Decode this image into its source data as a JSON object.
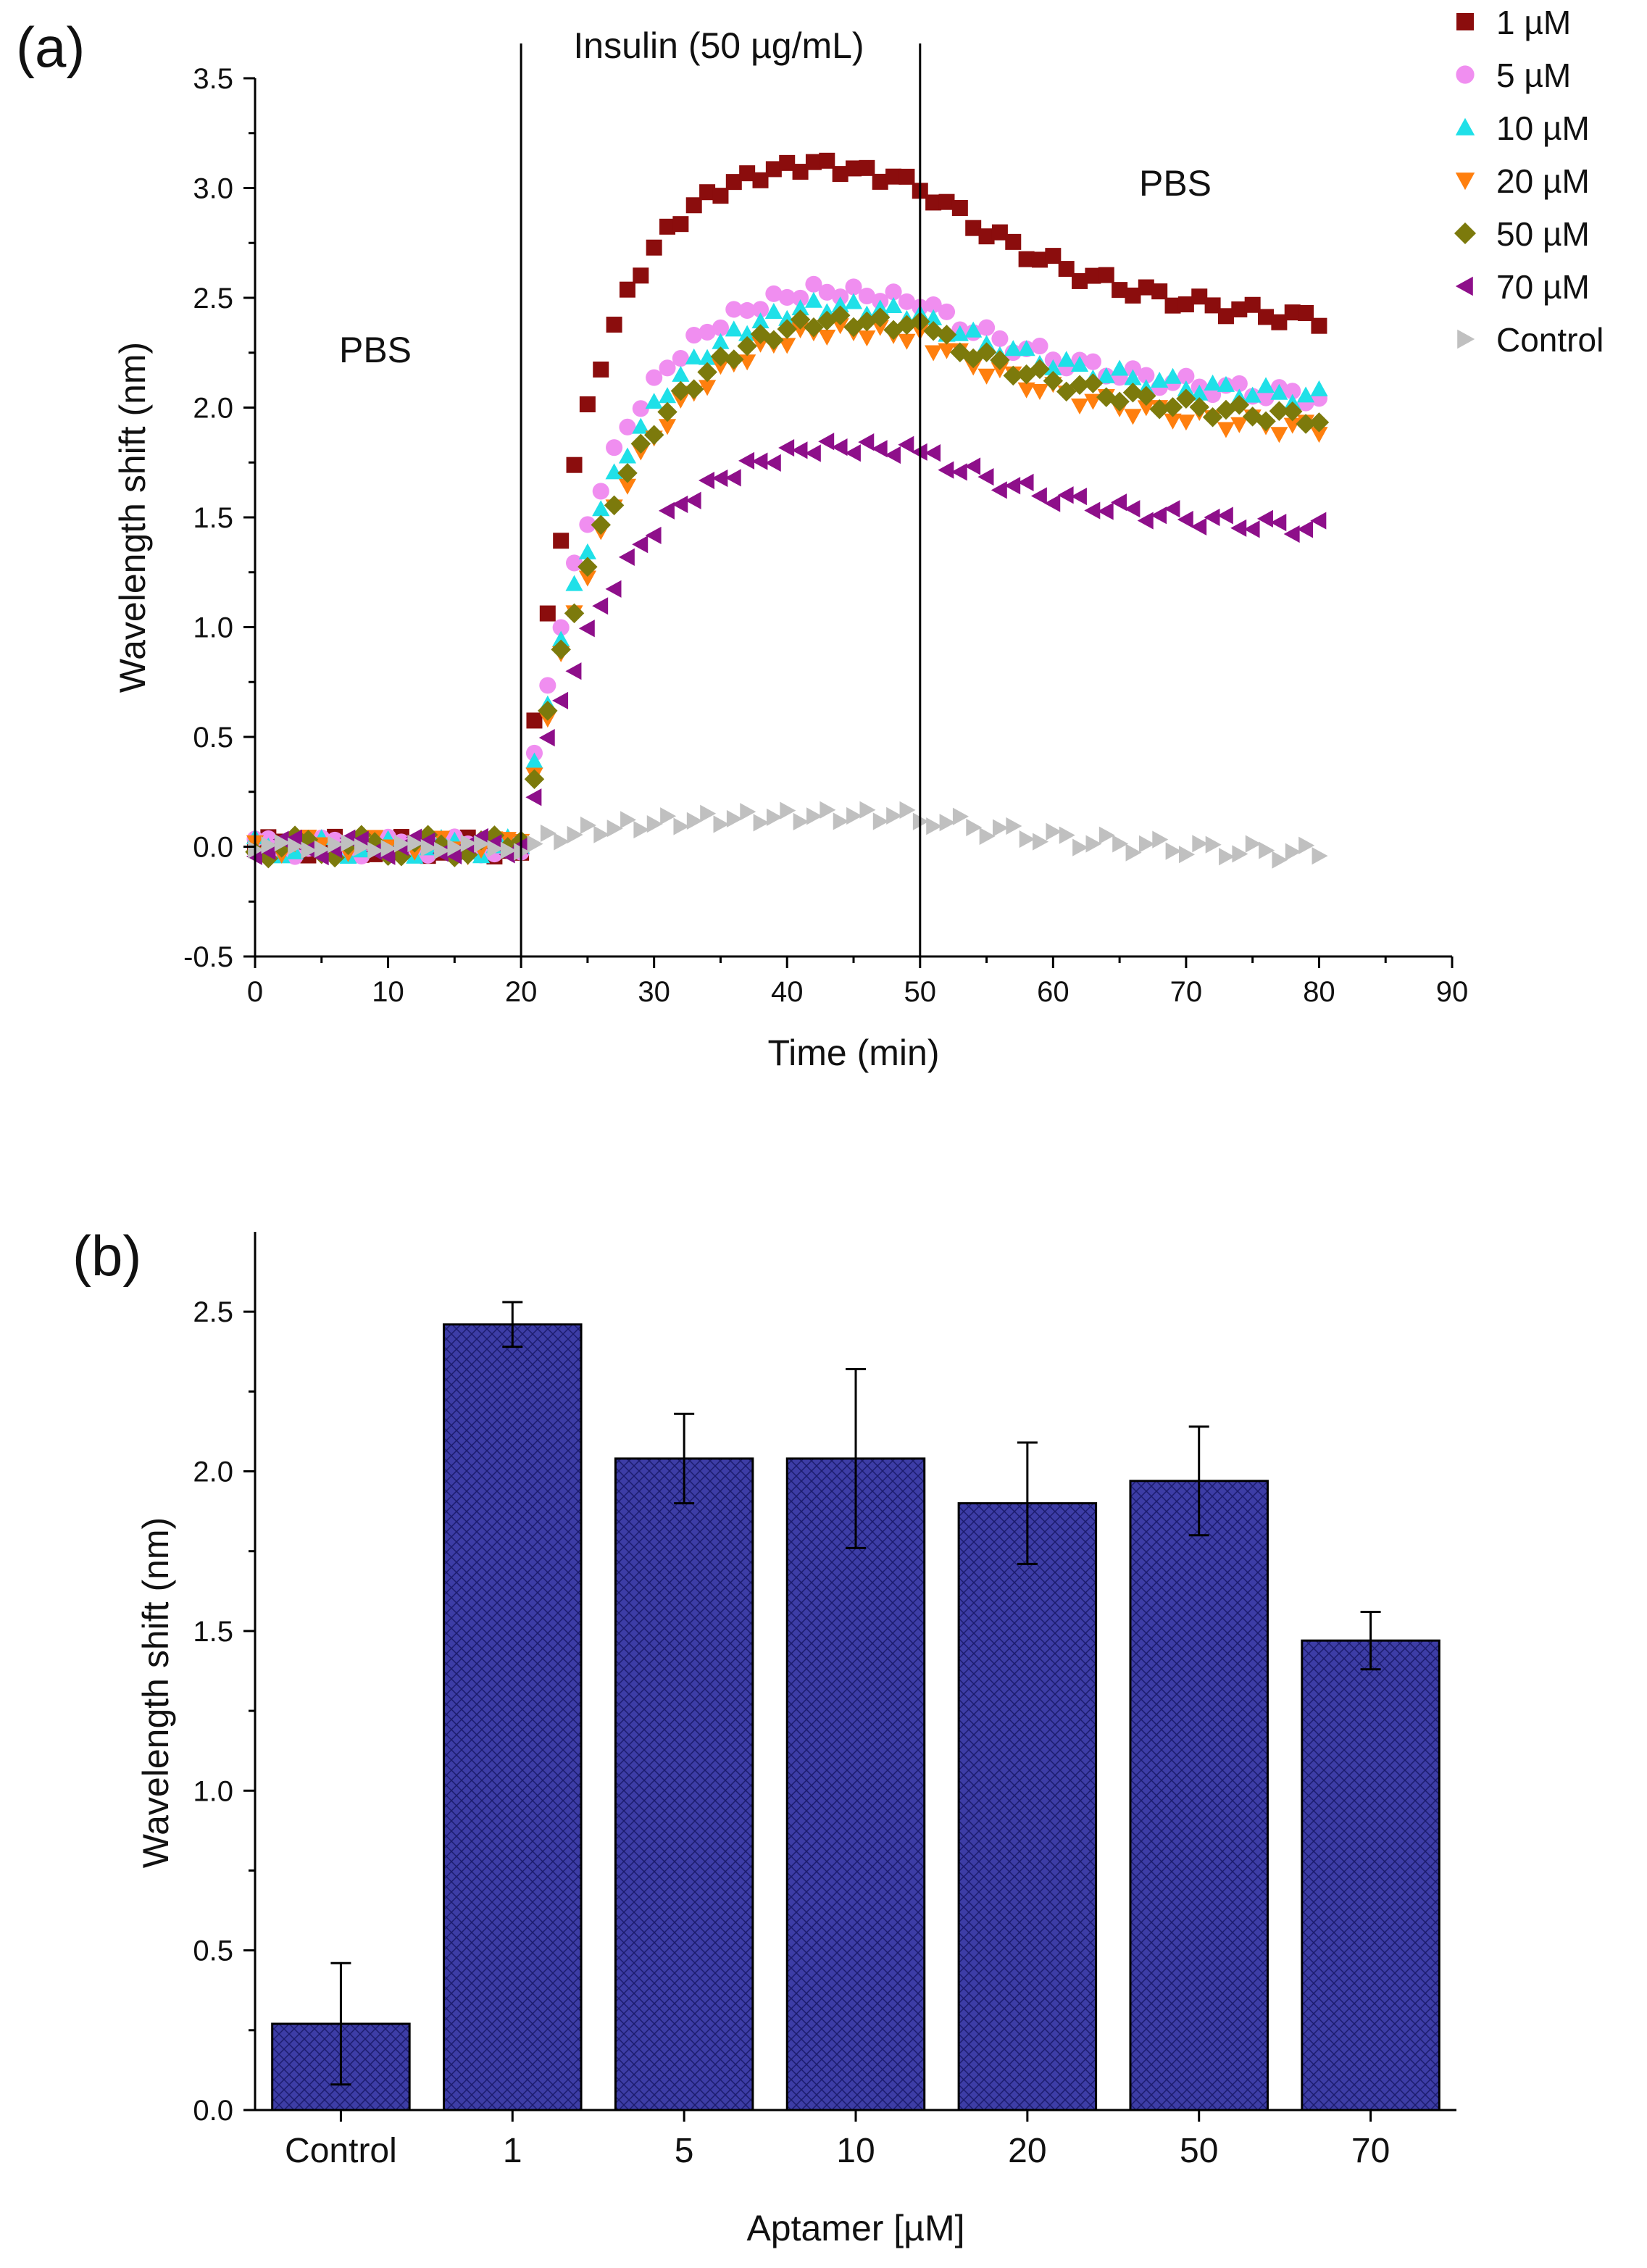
{
  "colors": {
    "1 µM": "#8b0d0d",
    "5 µM": "#f08ef0",
    "10 µM": "#1fe0e8",
    "20 µM": "#ff7f0e",
    "50 µM": "#7c7a0c",
    "70 µM": "#8e0f8a",
    "Control": "#c0c0c0",
    "bar": "#3d3da6"
  },
  "chart_data": [
    {
      "type": "scatter",
      "panel_label": "(a)",
      "xlabel": "Time (min)",
      "ylabel": "Wavelength shift (nm)",
      "xlim": [
        0,
        90
      ],
      "ylim": [
        -0.5,
        3.5
      ],
      "x_ticks": [
        "0",
        "10",
        "20",
        "30",
        "40",
        "50",
        "60",
        "70",
        "80",
        "90"
      ],
      "y_ticks": [
        "-0.5",
        "0.0",
        "0.5",
        "1.0",
        "1.5",
        "2.0",
        "2.5",
        "3.0",
        "3.5"
      ],
      "phase_lines_x": [
        20,
        50
      ],
      "annotations": [
        {
          "text": "Insulin (50 µg/mL)",
          "x": 35,
          "y": 3.62
        },
        {
          "text": "PBS",
          "x": 9,
          "y": 2.2
        },
        {
          "text": "PBS",
          "x": 69,
          "y": 2.95
        }
      ],
      "legend": [
        "1 µM",
        "5 µM",
        "10 µM",
        "20 µM",
        "50 µM",
        "70 µM",
        "Control"
      ],
      "series": [
        {
          "name": "1 µM",
          "marker": "square",
          "plateau": 3.15,
          "tau": 5.0,
          "end": 2.4,
          "baseline_jitter": 0.05
        },
        {
          "name": "5 µM",
          "marker": "circle",
          "plateau": 2.6,
          "tau": 6.0,
          "end": 2.05,
          "baseline_jitter": 0.05
        },
        {
          "name": "10 µM",
          "marker": "triangle-up",
          "plateau": 2.55,
          "tau": 6.5,
          "end": 2.05,
          "baseline_jitter": 0.05
        },
        {
          "name": "20 µM",
          "marker": "triangle-down",
          "plateau": 2.45,
          "tau": 7.0,
          "end": 1.9,
          "baseline_jitter": 0.05
        },
        {
          "name": "50 µM",
          "marker": "diamond",
          "plateau": 2.5,
          "tau": 7.0,
          "end": 1.95,
          "baseline_jitter": 0.06
        },
        {
          "name": "70 µM",
          "marker": "triangle-left",
          "plateau": 1.9,
          "tau": 7.0,
          "end": 1.45,
          "baseline_jitter": 0.05
        },
        {
          "name": "Control",
          "marker": "triangle-right",
          "plateau": 0.15,
          "tau": 8.0,
          "end": -0.03,
          "baseline_jitter": 0.02
        }
      ]
    },
    {
      "type": "bar",
      "panel_label": "(b)",
      "xlabel": "Aptamer [µM]",
      "ylabel": "Wavelength shift (nm)",
      "categories": [
        "Control",
        "1",
        "5",
        "10",
        "20",
        "50",
        "70"
      ],
      "values": [
        0.27,
        2.46,
        2.04,
        2.04,
        1.9,
        1.97,
        1.47
      ],
      "errors": [
        0.19,
        0.07,
        0.14,
        0.28,
        0.19,
        0.17,
        0.09
      ],
      "ylim": [
        0,
        2.75
      ],
      "y_ticks": [
        "0.0",
        "0.5",
        "1.0",
        "1.5",
        "2.0",
        "2.5"
      ]
    }
  ]
}
